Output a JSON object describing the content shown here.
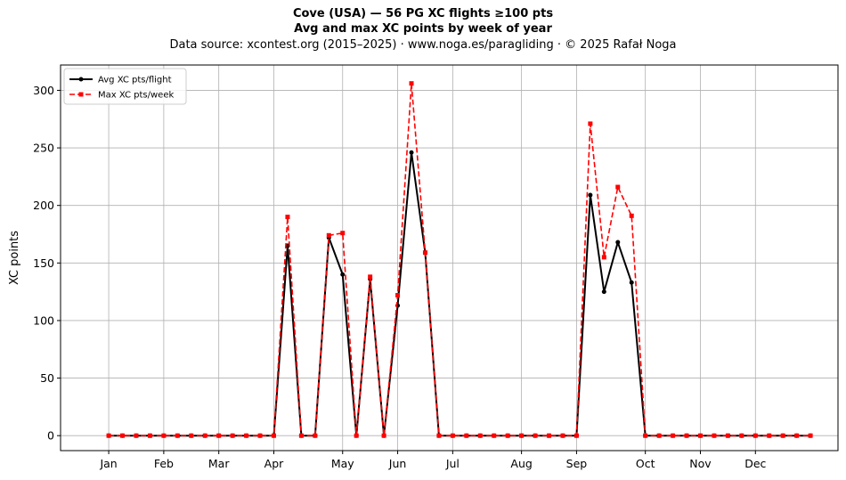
{
  "title_line1": "Cove (USA)  —  56 PG XC flights ≥100 pts",
  "title_line2": "Avg and max XC points by week of year",
  "title_line3": "Data source: xcontest.org (2015–2025)  ·  www.noga.es/paragliding  ·  © 2025 Rafał Noga",
  "chart_data": {
    "type": "line",
    "ylabel": "XC points",
    "xlabel": "",
    "ylim": [
      -13,
      322
    ],
    "yticks": [
      0,
      50,
      100,
      150,
      200,
      250,
      300
    ],
    "grid": true,
    "legend_position": "upper-left",
    "x_axis": {
      "unit": "week of year",
      "range": [
        -2.5,
        54
      ],
      "tick_weeks": [
        1,
        5,
        9,
        13,
        18,
        22,
        26,
        31,
        35,
        40,
        44,
        48
      ],
      "tick_labels": [
        "Jan",
        "Feb",
        "Mar",
        "Apr",
        "May",
        "Jun",
        "Jul",
        "Aug",
        "Sep",
        "Oct",
        "Nov",
        "Dec"
      ]
    },
    "x": [
      1,
      2,
      3,
      4,
      5,
      6,
      7,
      8,
      9,
      10,
      11,
      12,
      13,
      14,
      15,
      16,
      17,
      18,
      19,
      20,
      21,
      22,
      23,
      24,
      25,
      26,
      27,
      28,
      29,
      30,
      31,
      32,
      33,
      34,
      35,
      36,
      37,
      38,
      39,
      40,
      41,
      42,
      43,
      44,
      45,
      46,
      47,
      48,
      49,
      50,
      51,
      52
    ],
    "series": [
      {
        "name": "Avg XC pts/flight",
        "color": "#000000",
        "style": "solid",
        "marker": "circle",
        "values": [
          0,
          0,
          0,
          0,
          0,
          0,
          0,
          0,
          0,
          0,
          0,
          0,
          0,
          165,
          0,
          0,
          172,
          140,
          0,
          136,
          0,
          113,
          246,
          159,
          0,
          0,
          0,
          0,
          0,
          0,
          0,
          0,
          0,
          0,
          0,
          209,
          125,
          168,
          133,
          0,
          0,
          0,
          0,
          0,
          0,
          0,
          0,
          0,
          0,
          0,
          0,
          0
        ]
      },
      {
        "name": "Max XC pts/week",
        "color": "#ff0000",
        "style": "dashed",
        "marker": "square",
        "values": [
          0,
          0,
          0,
          0,
          0,
          0,
          0,
          0,
          0,
          0,
          0,
          0,
          0,
          190,
          0,
          0,
          174,
          176,
          0,
          138,
          0,
          122,
          306,
          159,
          0,
          0,
          0,
          0,
          0,
          0,
          0,
          0,
          0,
          0,
          0,
          271,
          155,
          216,
          191,
          0,
          0,
          0,
          0,
          0,
          0,
          0,
          0,
          0,
          0,
          0,
          0,
          0
        ]
      }
    ]
  }
}
